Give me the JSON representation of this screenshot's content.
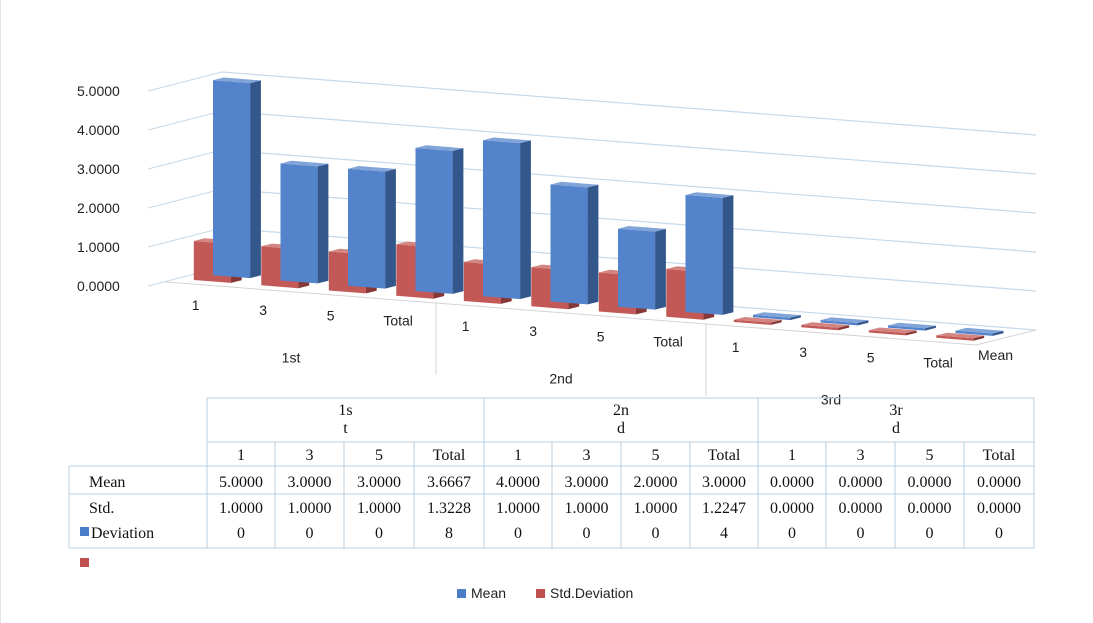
{
  "chart_data": {
    "type": "bar",
    "groups": [
      {
        "label": "1st",
        "table_label": "1st",
        "categories": [
          "1",
          "3",
          "5",
          "Total"
        ]
      },
      {
        "label": "2nd",
        "table_label": "2nd",
        "categories": [
          "1",
          "3",
          "5",
          "Total"
        ]
      },
      {
        "label": "3rd",
        "table_label": "3rd",
        "categories": [
          "1",
          "3",
          "5",
          "Total"
        ]
      }
    ],
    "series": [
      {
        "name": "Mean",
        "color": "#4a7cc7",
        "values": [
          5.0,
          3.0,
          3.0,
          3.6667,
          4.0,
          3.0,
          2.0,
          3.0,
          0.0,
          0.0,
          0.0,
          0.0
        ],
        "labels": [
          "5.0000",
          "3.0000",
          "3.0000",
          "3.6667",
          "4.0000",
          "3.0000",
          "2.0000",
          "3.0000",
          "0.0000",
          "0.0000",
          "0.0000",
          "0.0000"
        ]
      },
      {
        "name": "Std. Deviation",
        "color": "#c0504d",
        "values": [
          1.0,
          1.0,
          1.0,
          1.32288,
          1.0,
          1.0,
          1.0,
          1.22474,
          0.0,
          0.0,
          0.0,
          0.0
        ],
        "labels": [
          "1.00000",
          "1.00000",
          "1.00000",
          "1.32288",
          "1.00000",
          "1.00000",
          "1.00000",
          "1.22474",
          "0.00000",
          "0.00000",
          "0.00000",
          "0.00000"
        ]
      }
    ],
    "y_ticks": [
      "0.0000",
      "1.0000",
      "2.0000",
      "3.0000",
      "4.0000",
      "5.0000"
    ],
    "ylim": [
      0,
      5
    ],
    "depth_label": "Mean",
    "legend": [
      "Mean",
      "Std.Deviation"
    ],
    "legend_position": "bottom",
    "grid": true
  }
}
